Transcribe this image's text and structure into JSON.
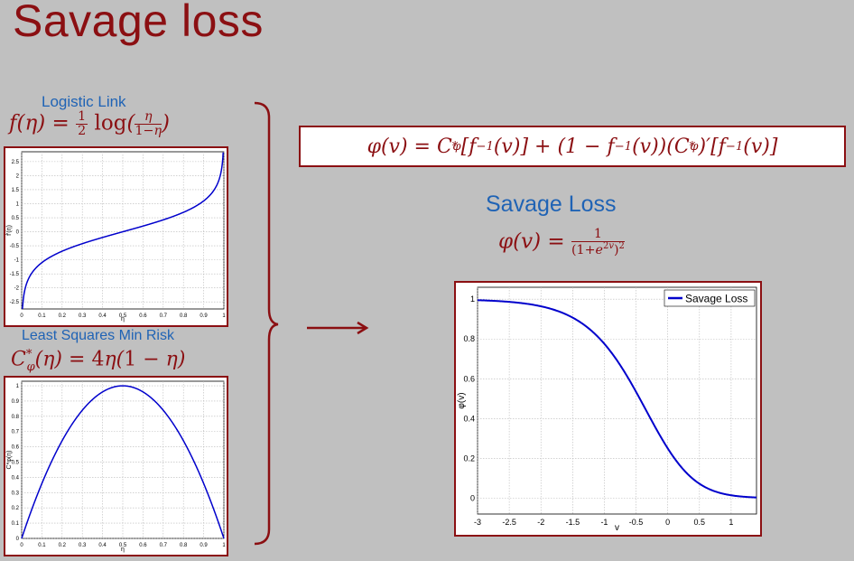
{
  "slide": {
    "title": "Savage loss",
    "logistic_label": "Logistic  Link",
    "least_squares_label": "Least Squares Min Risk",
    "savage_label": "Savage  Loss",
    "colors": {
      "title": "#8b0f12",
      "blue_label": "#1f63b5",
      "curve": "#0000cc",
      "background": "#c0c0c0"
    }
  },
  "chart_data": [
    {
      "type": "line",
      "name": "logistic-link",
      "title": "",
      "xlabel": "η",
      "ylabel": "f'(η)",
      "xlim": [
        0,
        1
      ],
      "ylim": [
        -2.75,
        2.85
      ],
      "xticks": [
        "0",
        "0.1",
        "0.2",
        "0.3",
        "0.4",
        "0.5",
        "0.6",
        "0.7",
        "0.8",
        "0.9",
        "1"
      ],
      "yticks": [
        "-2.5",
        "-2",
        "-1.5",
        "-1",
        "-0.5",
        "0",
        "0.5",
        "1",
        "1.5",
        "2",
        "2.5"
      ],
      "function": "f(η) = ½ log(η/(1-η))",
      "grid": true
    },
    {
      "type": "line",
      "name": "least-squares-min-risk",
      "title": "",
      "xlabel": "η",
      "ylabel": "C*φ(η)",
      "xlim": [
        0,
        1
      ],
      "ylim": [
        0,
        1.03
      ],
      "xticks": [
        "0",
        "0.1",
        "0.2",
        "0.3",
        "0.4",
        "0.5",
        "0.6",
        "0.7",
        "0.8",
        "0.9",
        "1"
      ],
      "yticks": [
        "0",
        "0.1",
        "0.2",
        "0.3",
        "0.4",
        "0.5",
        "0.6",
        "0.7",
        "0.8",
        "0.9",
        "1"
      ],
      "function": "C*φ(η) = 4η(1-η)",
      "grid": true
    },
    {
      "type": "line",
      "name": "savage-loss",
      "title": "",
      "xlabel": "v",
      "ylabel": "φ(v)",
      "xlim": [
        -3,
        1.4
      ],
      "ylim": [
        -0.08,
        1.06
      ],
      "xticks": [
        "-3",
        "-2.5",
        "-2",
        "-1.5",
        "-1",
        "-0.5",
        "0",
        "0.5",
        "1"
      ],
      "yticks": [
        "0",
        "0.2",
        "0.4",
        "0.6",
        "0.8",
        "1"
      ],
      "legend": {
        "position": "top-right",
        "entries": [
          "Savage Loss"
        ]
      },
      "series": [
        {
          "name": "Savage Loss",
          "function": "φ(v) = 1/(1+e^{2v})^2"
        }
      ],
      "grid": true
    }
  ]
}
